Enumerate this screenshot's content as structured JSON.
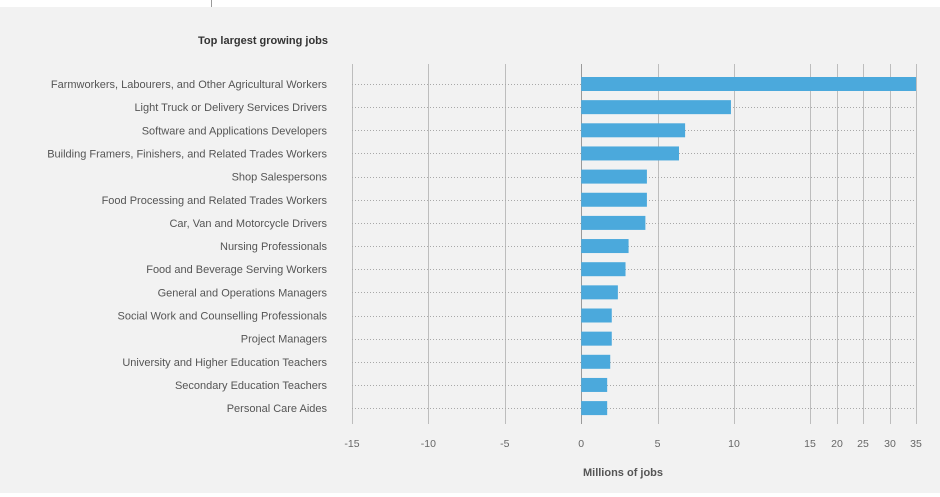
{
  "chart_data": {
    "type": "bar",
    "orientation": "horizontal",
    "title": "Top largest growing jobs",
    "xlabel": "Millions of jobs",
    "categories": [
      "Farmworkers, Labourers, and Other Agricultural Workers",
      "Light Truck or Delivery Services Drivers",
      "Software and Applications Developers",
      "Building Framers, Finishers, and Related Trades Workers",
      "Shop Salespersons",
      "Food Processing and Related Trades Workers",
      "Car, Van and Motorcycle Drivers",
      "Nursing Professionals",
      "Food and Beverage Serving Workers",
      "General and Operations Managers",
      "Social Work and Counselling Professionals",
      "Project Managers",
      "University and Higher Education Teachers",
      "Secondary Education Teachers",
      "Personal Care Aides"
    ],
    "values": [
      35,
      9.8,
      6.8,
      6.4,
      4.3,
      4.3,
      4.2,
      3.1,
      2.9,
      2.4,
      2.0,
      2.0,
      1.9,
      1.7,
      1.7
    ],
    "x_ticks": [
      -15,
      -10,
      -5,
      0,
      5,
      10,
      15,
      20,
      25,
      30,
      35
    ],
    "x_tick_labels": [
      "-15",
      "-10",
      "-5",
      "0",
      "5",
      "10",
      "15",
      "20",
      "25",
      "30",
      "35"
    ],
    "xlim": [
      -15,
      35
    ],
    "scale_note": "piecewise: -15..10 linear, 10..35 compressed",
    "bar_color": "#4ba9dc",
    "grid": true,
    "legend": "none"
  }
}
